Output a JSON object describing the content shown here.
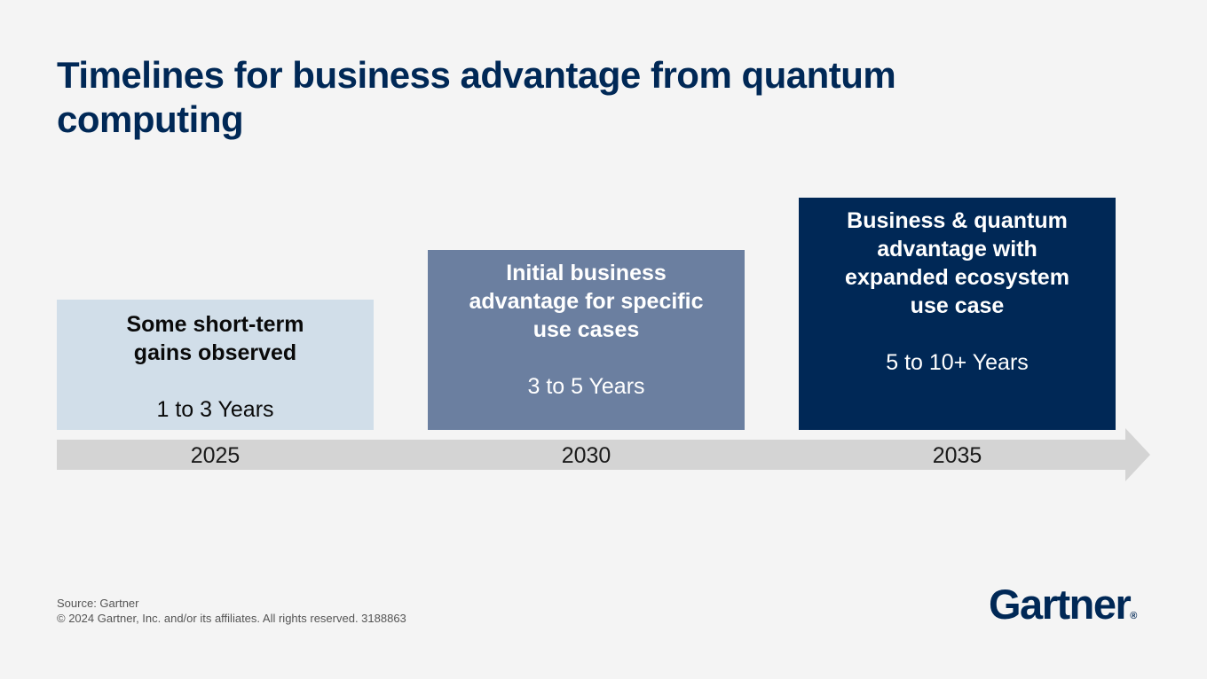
{
  "title": "Timelines for business advantage from quantum computing",
  "stages": [
    {
      "headline_lines": [
        "Some short-term",
        "gains observed"
      ],
      "duration": "1 to 3 Years",
      "year": "2025",
      "color": "#d1dee9"
    },
    {
      "headline_lines": [
        "Initial business",
        "advantage for specific",
        "use cases"
      ],
      "duration": "3 to 5 Years",
      "year": "2030",
      "color": "#6b7fa0"
    },
    {
      "headline_lines": [
        "Business & quantum",
        "advantage with",
        "expanded ecosystem",
        "use case"
      ],
      "duration": "5 to 10+ Years",
      "year": "2035",
      "color": "#002856"
    }
  ],
  "footer": {
    "source": "Source: Gartner",
    "copyright": "© 2024 Gartner, Inc. and/or its affiliates. All rights reserved. 3188863"
  },
  "logo": {
    "text": "Gartner",
    "mark": "®"
  },
  "colors": {
    "brand_navy": "#002856",
    "arrow": "#d4d4d4",
    "background": "#f4f4f4"
  }
}
